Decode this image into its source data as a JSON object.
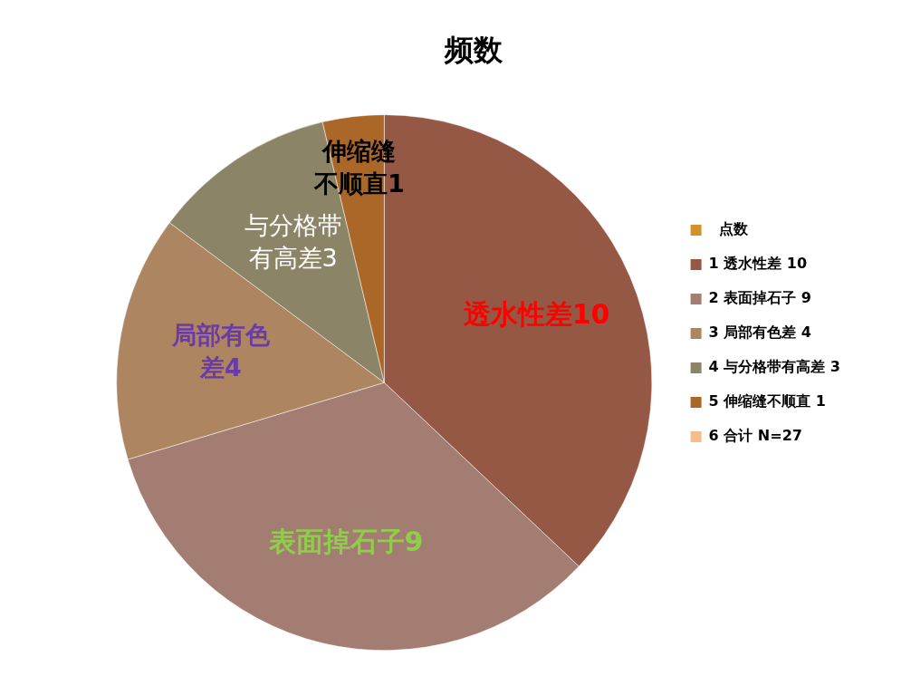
{
  "chart_data": {
    "type": "pie",
    "title": "频数",
    "legend": "right",
    "categories": [
      "  点数",
      "1 透水性差 10",
      "2 表面掉石子 9",
      "3 局部有色差 4",
      "4 与分格带有高差 3",
      "5 伸缩缝不顺直 1",
      "6 合计 N=27"
    ],
    "values": [
      null,
      10,
      9,
      4,
      3,
      1,
      null
    ],
    "colors": [
      "#d4902a",
      "#955845",
      "#a37c72",
      "#ad8561",
      "#8c8467",
      "#ab6727",
      "#f6bc8a"
    ],
    "value_labels": [
      null,
      "透水性差10",
      "表面掉石子9",
      "局部有色差4",
      "与分格带有高差3",
      "伸缩缝不顺直1",
      null
    ]
  }
}
